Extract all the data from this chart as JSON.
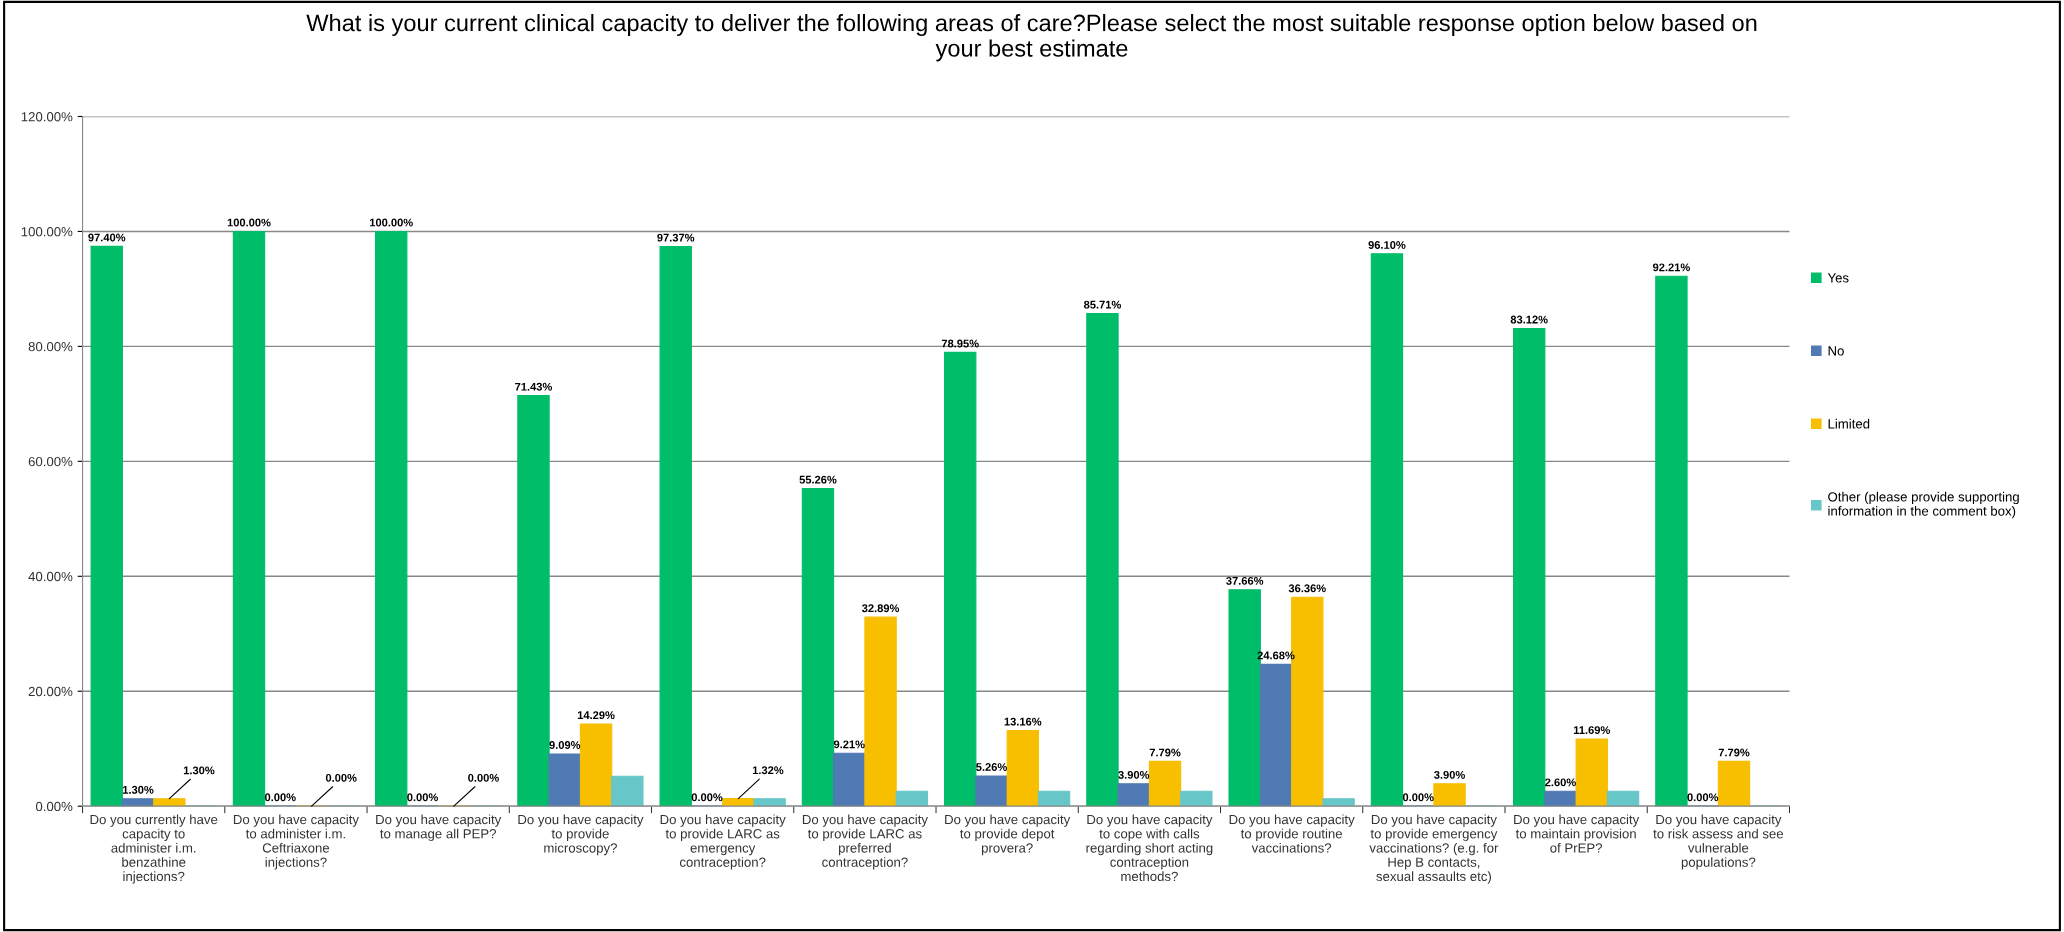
{
  "chart_data": {
    "type": "bar",
    "title": "What is your current clinical capacity to deliver the following areas of care?Please select the most suitable response option below based on\nyour best estimate",
    "categories": [
      "Do you currently have\ncapacity to\nadminister i.m.\nbenzathine\ninjections?",
      "Do you have capacity\nto administer i.m.\nCeftriaxone\ninjections?",
      "Do you have capacity\nto manage all PEP?",
      "Do you have capacity\nto provide\nmicroscopy?",
      "Do you have capacity\nto provide LARC as\nemergency\ncontraception?",
      "Do you have capacity\nto provide LARC as\npreferred\ncontraception?",
      "Do you have capacity\nto provide depot\nprovera?",
      "Do you have capacity\nto cope with calls\nregarding short acting\ncontraception\nmethods?",
      "Do you have capacity\nto provide routine\nvaccinations?",
      "Do you have capacity\nto provide emergency\nvaccinations? (e.g. for\nHep B contacts,\nsexual assaults etc)",
      "Do you have capacity\nto maintain provision\nof PrEP?",
      "Do you have capacity\nto risk assess and see\nvulnerable\npopulations?"
    ],
    "series": [
      {
        "name": "Yes",
        "color": "#00bd6a",
        "values": [
          97.4,
          100.0,
          100.0,
          71.43,
          97.37,
          55.26,
          78.95,
          85.71,
          37.66,
          96.1,
          83.12,
          92.21
        ],
        "value_labels": [
          "97.40%",
          "100.00%",
          "100.00%",
          "71.43%",
          "97.37%",
          "55.26%",
          "78.95%",
          "85.71%",
          "37.66%",
          "96.10%",
          "83.12%",
          "92.21%"
        ]
      },
      {
        "name": "No",
        "color": "#4f7ab3",
        "values": [
          1.3,
          0.0,
          0.0,
          9.09,
          0.0,
          9.21,
          5.26,
          3.9,
          24.68,
          0.0,
          2.6,
          0.0
        ],
        "value_labels": [
          "1.30%",
          "0.00%",
          "0.00%",
          "9.09%",
          "0.00%",
          "9.21%",
          "5.26%",
          "3.90%",
          "24.68%",
          "0.00%",
          "2.60%",
          "0.00%"
        ]
      },
      {
        "name": "Limited",
        "color": "#f8bf00",
        "values": [
          1.3,
          0.0,
          0.0,
          14.29,
          1.32,
          32.89,
          13.16,
          7.79,
          36.36,
          3.9,
          11.69,
          7.79
        ],
        "value_labels": [
          "1.30%",
          "0.00%",
          "0.00%",
          "14.29%",
          "1.32%",
          "32.89%",
          "13.16%",
          "7.79%",
          "36.36%",
          "3.90%",
          "11.69%",
          "7.79%"
        ]
      },
      {
        "name": "Other (please provide supporting\ninformation in the comment box)",
        "color": "#66c6c8",
        "values": [
          0,
          0,
          0,
          5.2,
          1.3,
          2.6,
          2.6,
          2.6,
          1.3,
          0,
          2.6,
          0
        ]
      }
    ],
    "ylim": [
      0,
      120
    ],
    "yticks": [
      {
        "value": 0,
        "label": "0.00%"
      },
      {
        "value": 20,
        "label": "20.00%"
      },
      {
        "value": 40,
        "label": "40.00%"
      },
      {
        "value": 60,
        "label": "60.00%"
      },
      {
        "value": 80,
        "label": "80.00%"
      },
      {
        "value": 100,
        "label": "100.00%"
      },
      {
        "value": 120,
        "label": "120.00%"
      }
    ],
    "grid": "y",
    "legend": "right"
  }
}
